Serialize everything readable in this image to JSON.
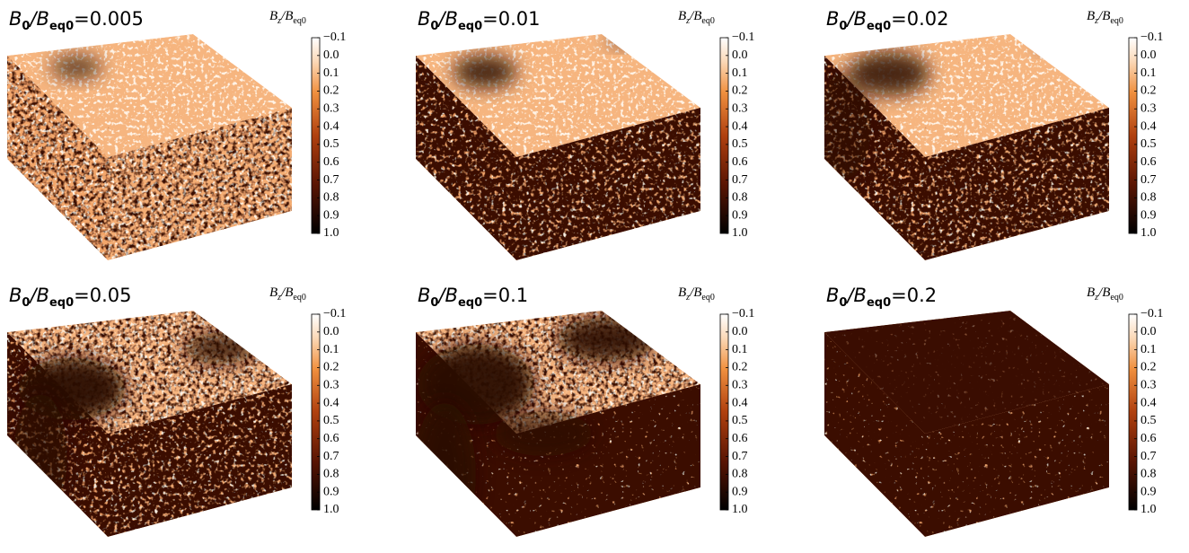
{
  "panels": [
    {
      "title": [
        "B",
        "0",
        "/B",
        "eq0",
        "=0.005"
      ],
      "colorbar": {
        "label": [
          "B",
          "z",
          "/B",
          "eq0"
        ],
        "lim": [
          -0.1,
          1.0
        ],
        "ticks": [
          {
            "value": -0.1,
            "label": "−0.1"
          },
          {
            "value": 0,
            "label": "0.0"
          },
          0.1,
          0.2,
          0.3,
          0.4,
          0.5,
          0.6,
          0.7,
          0.8,
          0.9,
          {
            "value": 1,
            "label": "1.0"
          }
        ]
      }
    },
    {
      "title": [
        "B",
        "0",
        "/B",
        "eq0",
        "=0.01"
      ],
      "colorbar": {
        "label": [
          "B",
          "z",
          "/B",
          "eq0"
        ],
        "lim": [
          -0.1,
          1.0
        ],
        "ticks": [
          {
            "value": -0.1,
            "label": "−0.1"
          },
          {
            "value": 0,
            "label": "0.0"
          },
          0.1,
          0.2,
          0.3,
          0.4,
          0.5,
          0.6,
          0.7,
          0.8,
          0.9,
          {
            "value": 1,
            "label": "1.0"
          }
        ]
      }
    },
    {
      "title": [
        "B",
        "0",
        "/B",
        "eq0",
        "=0.02"
      ],
      "colorbar": {
        "label": [
          "B",
          "z",
          "/B",
          "eq0"
        ],
        "lim": [
          -0.1,
          1.0
        ],
        "ticks": [
          {
            "value": -0.1,
            "label": "−0.1"
          },
          {
            "value": 0,
            "label": "0.0"
          },
          0.1,
          0.2,
          0.3,
          0.4,
          0.5,
          0.6,
          0.7,
          0.8,
          0.9,
          {
            "value": 1,
            "label": "1.0"
          }
        ]
      }
    },
    {
      "title": [
        "B",
        "0",
        "/B",
        "eq0",
        "=0.05"
      ],
      "colorbar": {
        "label": [
          "B",
          "z",
          "/B",
          "eq0"
        ],
        "lim": [
          -0.1,
          1.0
        ],
        "ticks": [
          {
            "value": -0.1,
            "label": "−0.1"
          },
          {
            "value": 0,
            "label": "0.0"
          },
          0.1,
          0.2,
          0.3,
          0.4,
          0.5,
          0.6,
          0.7,
          0.8,
          0.9,
          {
            "value": 1,
            "label": "1.0"
          }
        ]
      }
    },
    {
      "title": [
        "B",
        "0",
        "/B",
        "eq0",
        "=0.1"
      ],
      "colorbar": {
        "label": [
          "B",
          "z",
          "/B",
          "eq0"
        ],
        "lim": [
          -0.1,
          1.0
        ],
        "ticks": [
          {
            "value": -0.1,
            "label": "−0.1"
          },
          {
            "value": 0,
            "label": "0.0"
          },
          0.1,
          0.2,
          0.3,
          0.4,
          0.5,
          0.6,
          0.7,
          0.8,
          0.9,
          {
            "value": 1,
            "label": "1.0"
          }
        ]
      }
    },
    {
      "title": [
        "B",
        "0",
        "/B",
        "eq0",
        "=0.2"
      ],
      "colorbar": {
        "label": [
          "B",
          "z",
          "/B",
          "eq0"
        ],
        "lim": [
          -0.1,
          1.0
        ],
        "ticks": [
          {
            "value": -0.1,
            "label": "−0.1"
          },
          {
            "value": 0,
            "label": "0.0"
          },
          0.1,
          0.2,
          0.3,
          0.4,
          0.5,
          0.6,
          0.7,
          0.8,
          0.9,
          {
            "value": 1,
            "label": "1.0"
          }
        ]
      }
    }
  ]
}
